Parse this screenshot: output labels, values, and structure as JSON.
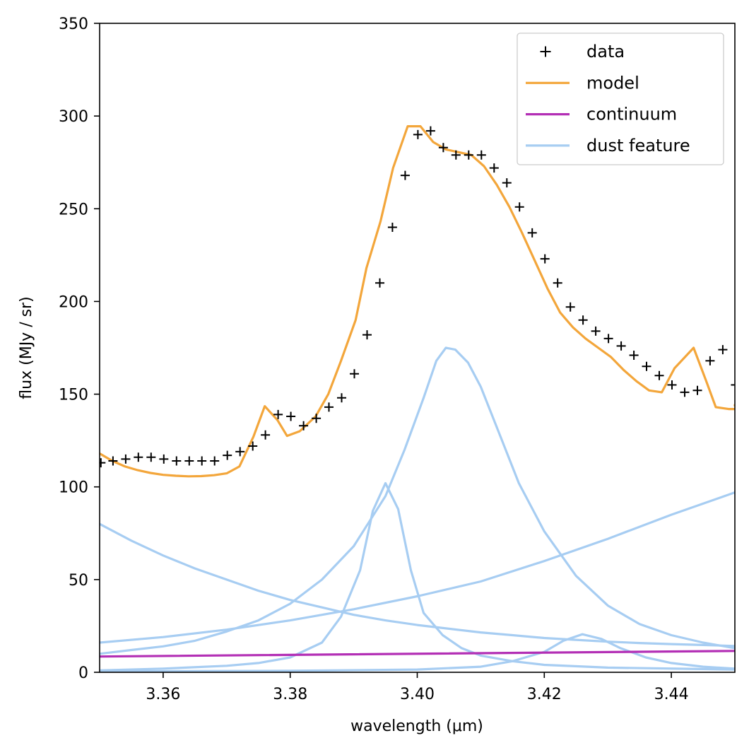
{
  "chart_data": {
    "type": "line",
    "xlabel": "wavelength (μm)",
    "ylabel": "flux (MJy / sr)",
    "xlim": [
      3.35,
      3.45
    ],
    "ylim": [
      0,
      350
    ],
    "xticks": [
      "3.36",
      "3.38",
      "3.40",
      "3.42",
      "3.44"
    ],
    "xtick_values": [
      3.36,
      3.38,
      3.4,
      3.42,
      3.44
    ],
    "yticks": [
      "0",
      "50",
      "100",
      "150",
      "200",
      "250",
      "300",
      "350"
    ],
    "ytick_values": [
      0,
      50,
      100,
      150,
      200,
      250,
      300,
      350
    ],
    "grid": false,
    "legend_position": "top-right",
    "series": [
      {
        "name": "data",
        "style": "marker-plus",
        "color": "#000000",
        "points": [
          [
            3.3502,
            113
          ],
          [
            3.3521,
            114
          ],
          [
            3.3541,
            115
          ],
          [
            3.3561,
            116
          ],
          [
            3.3581,
            116
          ],
          [
            3.3601,
            115
          ],
          [
            3.3621,
            114
          ],
          [
            3.3641,
            114
          ],
          [
            3.3661,
            114
          ],
          [
            3.3681,
            114
          ],
          [
            3.3701,
            117
          ],
          [
            3.3721,
            119
          ],
          [
            3.3741,
            122
          ],
          [
            3.3761,
            128
          ],
          [
            3.3781,
            139
          ],
          [
            3.3801,
            138
          ],
          [
            3.3821,
            133
          ],
          [
            3.3841,
            137
          ],
          [
            3.3861,
            143
          ],
          [
            3.3881,
            148
          ],
          [
            3.3901,
            161
          ],
          [
            3.3921,
            182
          ],
          [
            3.3941,
            210
          ],
          [
            3.3961,
            240
          ],
          [
            3.3981,
            268
          ],
          [
            3.4001,
            290
          ],
          [
            3.4021,
            292
          ],
          [
            3.4041,
            283
          ],
          [
            3.4061,
            279
          ],
          [
            3.4081,
            279
          ],
          [
            3.4101,
            279
          ],
          [
            3.4121,
            272
          ],
          [
            3.4141,
            264
          ],
          [
            3.4161,
            251
          ],
          [
            3.4181,
            237
          ],
          [
            3.4201,
            223
          ],
          [
            3.4221,
            210
          ],
          [
            3.4241,
            197
          ],
          [
            3.4261,
            190
          ],
          [
            3.4281,
            184
          ],
          [
            3.4301,
            180
          ],
          [
            3.4321,
            176
          ],
          [
            3.4341,
            171
          ],
          [
            3.4361,
            165
          ],
          [
            3.4381,
            160
          ],
          [
            3.4401,
            155
          ],
          [
            3.4421,
            151
          ],
          [
            3.4441,
            152
          ],
          [
            3.4461,
            168
          ],
          [
            3.4481,
            174
          ],
          [
            3.4501,
            155
          ]
        ]
      },
      {
        "name": "model",
        "style": "line",
        "color": "#f3a63b",
        "points": [
          [
            3.35,
            118
          ],
          [
            3.352,
            114
          ],
          [
            3.354,
            111
          ],
          [
            3.356,
            109
          ],
          [
            3.358,
            107.5
          ],
          [
            3.36,
            106.5
          ],
          [
            3.362,
            106
          ],
          [
            3.364,
            105.7
          ],
          [
            3.366,
            105.8
          ],
          [
            3.368,
            106.3
          ],
          [
            3.37,
            107.3
          ],
          [
            3.372,
            111
          ],
          [
            3.3742,
            127
          ],
          [
            3.376,
            143.5
          ],
          [
            3.378,
            136
          ],
          [
            3.3795,
            127.5
          ],
          [
            3.3815,
            130
          ],
          [
            3.384,
            138
          ],
          [
            3.386,
            150
          ],
          [
            3.388,
            168
          ],
          [
            3.3903,
            190
          ],
          [
            3.392,
            218
          ],
          [
            3.3942,
            243
          ],
          [
            3.3962,
            272
          ],
          [
            3.3985,
            294.5
          ],
          [
            3.4005,
            294.5
          ],
          [
            3.4025,
            286
          ],
          [
            3.4045,
            282
          ],
          [
            3.4065,
            280.5
          ],
          [
            3.4085,
            279
          ],
          [
            3.4105,
            273
          ],
          [
            3.4125,
            263
          ],
          [
            3.4145,
            251
          ],
          [
            3.4165,
            237
          ],
          [
            3.4185,
            222
          ],
          [
            3.4205,
            207
          ],
          [
            3.4225,
            194
          ],
          [
            3.4245,
            186
          ],
          [
            3.4265,
            180
          ],
          [
            3.4285,
            175
          ],
          [
            3.4305,
            170
          ],
          [
            3.4325,
            163
          ],
          [
            3.4345,
            157
          ],
          [
            3.4365,
            152
          ],
          [
            3.4385,
            151
          ],
          [
            3.4405,
            164
          ],
          [
            3.4435,
            175
          ],
          [
            3.4455,
            157
          ],
          [
            3.447,
            143
          ],
          [
            3.449,
            142
          ],
          [
            3.451,
            142
          ],
          [
            3.453,
            142.5
          ],
          [
            3.45,
            144
          ]
        ]
      },
      {
        "name": "continuum",
        "style": "line",
        "color": "#b32fb5",
        "points": [
          [
            3.35,
            8.5
          ],
          [
            3.45,
            11.5
          ]
        ]
      },
      {
        "name": "dust feature",
        "style": "line",
        "color": "#a7cdf2",
        "points": [
          [
            3.35,
            80
          ],
          [
            3.355,
            71
          ],
          [
            3.36,
            63
          ],
          [
            3.365,
            56
          ],
          [
            3.37,
            50
          ],
          [
            3.375,
            44
          ],
          [
            3.38,
            39
          ],
          [
            3.385,
            35
          ],
          [
            3.39,
            31
          ],
          [
            3.395,
            28
          ],
          [
            3.4,
            25.5
          ],
          [
            3.405,
            23.5
          ],
          [
            3.41,
            21.5
          ],
          [
            3.415,
            20
          ],
          [
            3.42,
            18.5
          ],
          [
            3.425,
            17.5
          ],
          [
            3.43,
            16.5
          ],
          [
            3.435,
            15.8
          ],
          [
            3.44,
            15.2
          ],
          [
            3.445,
            14.7
          ],
          [
            3.45,
            14.2
          ]
        ]
      },
      {
        "name": "",
        "style": "line",
        "color": "#a7cdf2",
        "points": [
          [
            3.35,
            16
          ],
          [
            3.36,
            19
          ],
          [
            3.37,
            23
          ],
          [
            3.38,
            28
          ],
          [
            3.39,
            34
          ],
          [
            3.4,
            41
          ],
          [
            3.41,
            49
          ],
          [
            3.42,
            60
          ],
          [
            3.43,
            72
          ],
          [
            3.44,
            85
          ],
          [
            3.45,
            97
          ]
        ]
      },
      {
        "name": "",
        "style": "line",
        "color": "#a7cdf2",
        "points": [
          [
            3.35,
            10
          ],
          [
            3.355,
            12
          ],
          [
            3.36,
            14
          ],
          [
            3.365,
            17
          ],
          [
            3.37,
            22
          ],
          [
            3.375,
            28
          ],
          [
            3.38,
            37
          ],
          [
            3.385,
            50
          ],
          [
            3.39,
            68
          ],
          [
            3.395,
            95
          ],
          [
            3.398,
            120
          ],
          [
            3.401,
            148
          ],
          [
            3.403,
            168
          ],
          [
            3.4045,
            175
          ],
          [
            3.406,
            174
          ],
          [
            3.408,
            167
          ],
          [
            3.41,
            154
          ],
          [
            3.413,
            128
          ],
          [
            3.416,
            102
          ],
          [
            3.42,
            76
          ],
          [
            3.425,
            52
          ],
          [
            3.43,
            36
          ],
          [
            3.435,
            26
          ],
          [
            3.44,
            20
          ],
          [
            3.445,
            16
          ],
          [
            3.45,
            13
          ]
        ]
      },
      {
        "name": "",
        "style": "line",
        "color": "#a7cdf2",
        "points": [
          [
            3.35,
            1
          ],
          [
            3.36,
            2
          ],
          [
            3.37,
            3.5
          ],
          [
            3.375,
            5
          ],
          [
            3.38,
            8
          ],
          [
            3.385,
            16
          ],
          [
            3.388,
            30
          ],
          [
            3.391,
            55
          ],
          [
            3.393,
            87
          ],
          [
            3.395,
            102
          ],
          [
            3.397,
            88
          ],
          [
            3.399,
            55
          ],
          [
            3.401,
            32
          ],
          [
            3.404,
            20
          ],
          [
            3.407,
            13
          ],
          [
            3.41,
            9
          ],
          [
            3.415,
            6
          ],
          [
            3.42,
            4
          ],
          [
            3.43,
            2.5
          ],
          [
            3.45,
            1.5
          ]
        ]
      },
      {
        "name": "",
        "style": "line",
        "color": "#a7cdf2",
        "points": [
          [
            3.35,
            0.5
          ],
          [
            3.38,
            0.8
          ],
          [
            3.4,
            1.5
          ],
          [
            3.41,
            3
          ],
          [
            3.415,
            6
          ],
          [
            3.42,
            11
          ],
          [
            3.423,
            17
          ],
          [
            3.426,
            20.5
          ],
          [
            3.429,
            18
          ],
          [
            3.432,
            13
          ],
          [
            3.436,
            8
          ],
          [
            3.44,
            5
          ],
          [
            3.445,
            3
          ],
          [
            3.45,
            2
          ]
        ]
      }
    ],
    "legend": [
      {
        "label": "data",
        "style": "marker-plus",
        "color": "#000000"
      },
      {
        "label": "model",
        "style": "line",
        "color": "#f3a63b"
      },
      {
        "label": "continuum",
        "style": "line",
        "color": "#b32fb5"
      },
      {
        "label": "dust feature",
        "style": "line",
        "color": "#a7cdf2"
      }
    ]
  }
}
